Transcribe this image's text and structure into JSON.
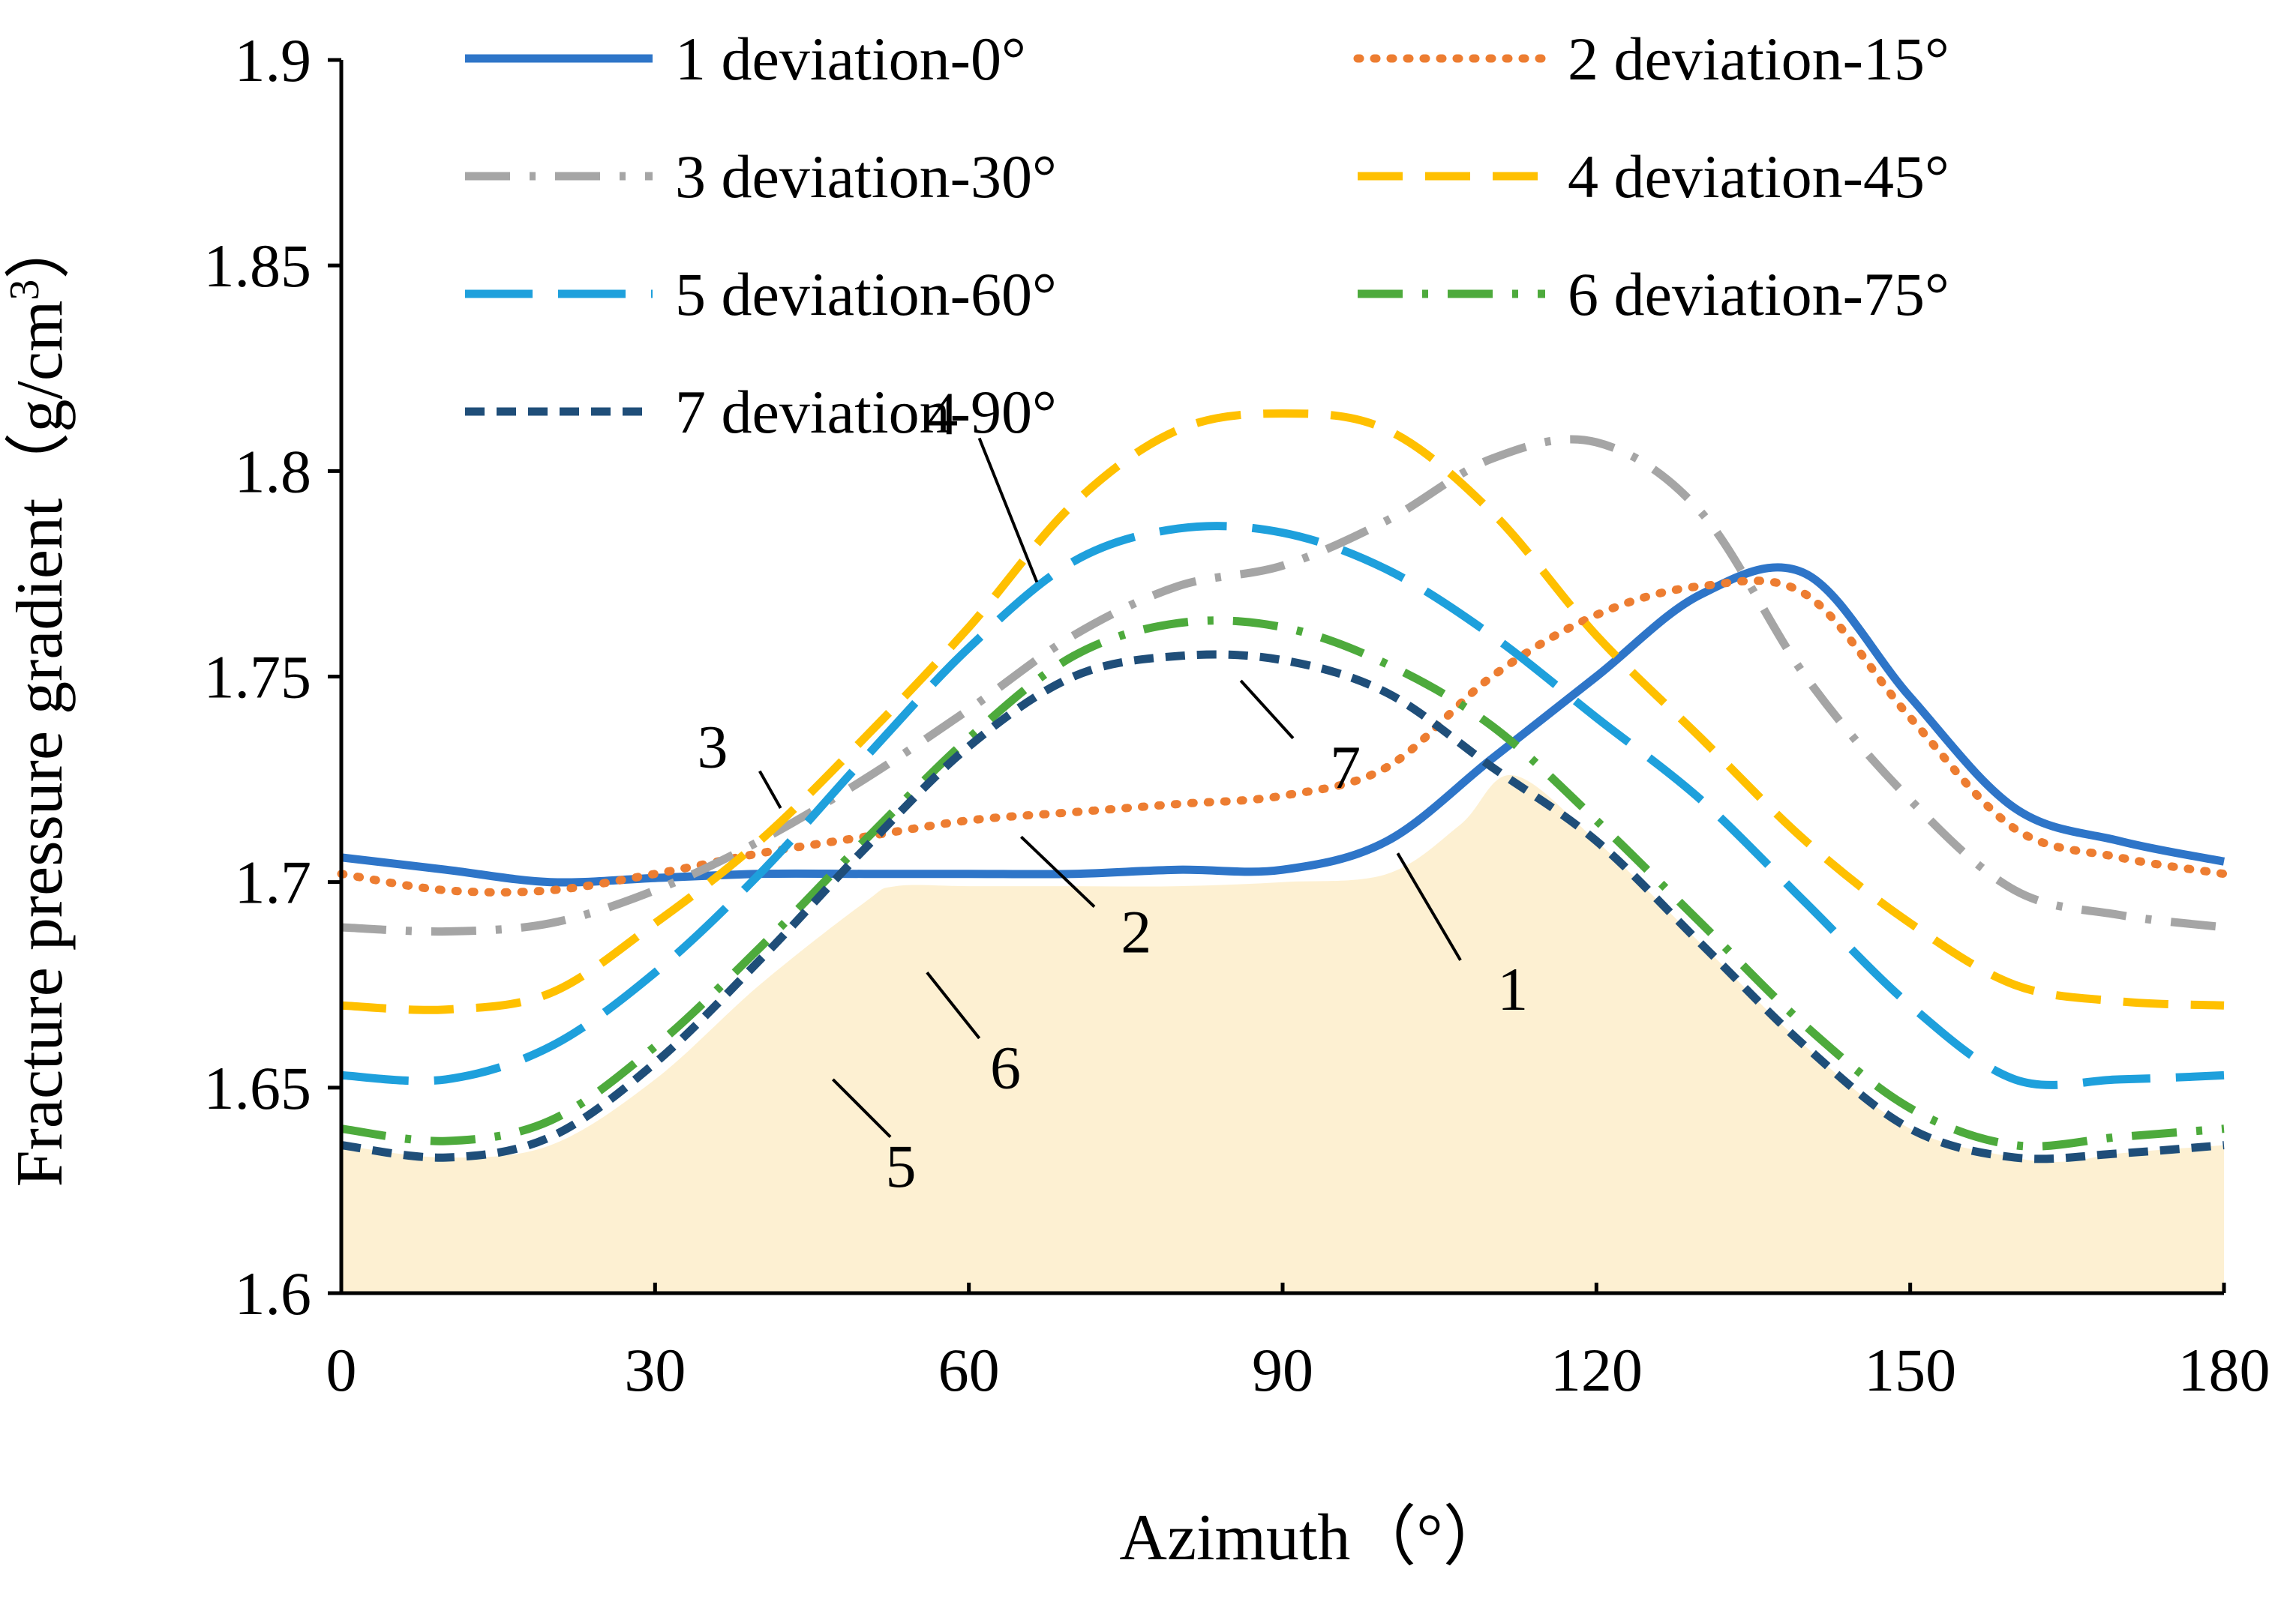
{
  "chart_data": {
    "type": "line",
    "title": "",
    "xlabel": "Azimuth（°）",
    "ylabel_main": "Fracture pressure gradient（g/cm",
    "ylabel_sup": "3",
    "ylabel_close": "）",
    "xlim": [
      0,
      180
    ],
    "ylim": [
      1.6,
      1.9
    ],
    "x_ticks": [
      0,
      30,
      60,
      90,
      120,
      150,
      180
    ],
    "y_ticks": [
      1.6,
      1.65,
      1.7,
      1.75,
      1.8,
      1.85,
      1.9
    ],
    "x_tick_labels": [
      "0",
      "30",
      "60",
      "90",
      "120",
      "150",
      "180"
    ],
    "y_tick_labels": [
      "1.6",
      "1.65",
      "1.7",
      "1.75",
      "1.8",
      "1.85",
      "1.9"
    ],
    "legend_position": "top",
    "x": [
      0,
      10,
      20,
      30,
      40,
      50,
      60,
      70,
      80,
      90,
      100,
      110,
      120,
      130,
      140,
      150,
      160,
      170,
      180
    ],
    "series": [
      {
        "id": "1",
        "name": "1 deviation-0°",
        "color": "#2e75c8",
        "style": "solid",
        "values": [
          1.706,
          1.703,
          1.7,
          1.701,
          1.702,
          1.702,
          1.702,
          1.702,
          1.703,
          1.703,
          1.71,
          1.73,
          1.75,
          1.77,
          1.775,
          1.745,
          1.718,
          1.71,
          1.705
        ]
      },
      {
        "id": "2",
        "name": "2 deviation-15°",
        "color": "#ed7d31",
        "style": "dotted",
        "values": [
          1.702,
          1.698,
          1.698,
          1.702,
          1.707,
          1.711,
          1.715,
          1.717,
          1.719,
          1.721,
          1.728,
          1.75,
          1.765,
          1.772,
          1.77,
          1.74,
          1.713,
          1.706,
          1.702
        ]
      },
      {
        "id": "3",
        "name": "3 deviation-30°",
        "color": "#a5a5a5",
        "style": "dashdot",
        "values": [
          1.689,
          1.688,
          1.69,
          1.698,
          1.71,
          1.725,
          1.742,
          1.76,
          1.772,
          1.777,
          1.788,
          1.803,
          1.807,
          1.79,
          1.75,
          1.72,
          1.698,
          1.692,
          1.689
        ]
      },
      {
        "id": "4",
        "name": "4 deviation-45°",
        "color": "#ffc000",
        "style": "dash",
        "values": [
          1.67,
          1.669,
          1.673,
          1.69,
          1.71,
          1.735,
          1.762,
          1.792,
          1.81,
          1.814,
          1.81,
          1.79,
          1.76,
          1.735,
          1.71,
          1.69,
          1.675,
          1.671,
          1.67
        ]
      },
      {
        "id": "5",
        "name": "5 deviation-60°",
        "color": "#1ea0dc",
        "style": "longdash",
        "values": [
          1.653,
          1.652,
          1.66,
          1.678,
          1.702,
          1.73,
          1.757,
          1.778,
          1.786,
          1.785,
          1.776,
          1.76,
          1.74,
          1.72,
          1.695,
          1.67,
          1.652,
          1.652,
          1.653
        ]
      },
      {
        "id": "6",
        "name": "6 deviation-75°",
        "color": "#4daa3c",
        "style": "dashdot",
        "values": [
          1.64,
          1.637,
          1.642,
          1.66,
          1.684,
          1.71,
          1.735,
          1.755,
          1.763,
          1.762,
          1.753,
          1.738,
          1.715,
          1.69,
          1.665,
          1.645,
          1.636,
          1.638,
          1.64
        ]
      },
      {
        "id": "7",
        "name": "7 deviation-90°",
        "color": "#1f4e79",
        "style": "shortdash",
        "values": [
          1.636,
          1.633,
          1.638,
          1.656,
          1.681,
          1.708,
          1.733,
          1.75,
          1.755,
          1.754,
          1.746,
          1.728,
          1.71,
          1.685,
          1.66,
          1.64,
          1.633,
          1.634,
          1.636
        ]
      }
    ],
    "safe_region": {
      "color": "#fdf0d2",
      "x": [
        0,
        10,
        20,
        30,
        40,
        50,
        53,
        60,
        70,
        80,
        90,
        100,
        107,
        112,
        120,
        130,
        140,
        150,
        160,
        165,
        170,
        180
      ],
      "y": [
        1.636,
        1.633,
        1.636,
        1.652,
        1.675,
        1.695,
        1.699,
        1.699,
        1.699,
        1.699,
        1.7,
        1.702,
        1.714,
        1.726,
        1.71,
        1.685,
        1.66,
        1.64,
        1.633,
        1.632,
        1.634,
        1.636
      ]
    },
    "callouts": [
      {
        "label": "4",
        "x0": 61.0,
        "y0": 1.808,
        "x1": 66.5,
        "y1": 1.773
      },
      {
        "label": "3",
        "x0": 40.0,
        "y0": 1.727,
        "x1": 42.0,
        "y1": 1.718
      },
      {
        "label": "2",
        "x0": 65.0,
        "y0": 1.711,
        "x1": 72.0,
        "y1": 1.694
      },
      {
        "label": "7",
        "x0": 86.0,
        "y0": 1.749,
        "x1": 91.0,
        "y1": 1.735
      },
      {
        "label": "1",
        "x0": 101.0,
        "y0": 1.707,
        "x1": 107.0,
        "y1": 1.681
      },
      {
        "label": "6",
        "x0": 56.0,
        "y0": 1.678,
        "x1": 61.0,
        "y1": 1.662
      },
      {
        "label": "5",
        "x0": 47.0,
        "y0": 1.652,
        "x1": 52.5,
        "y1": 1.638
      }
    ],
    "callout_texts": [
      {
        "label": "4",
        "x": 57.5,
        "y": 1.814
      },
      {
        "label": "3",
        "x": 35.5,
        "y": 1.733
      },
      {
        "label": "2",
        "x": 76.0,
        "y": 1.688
      },
      {
        "label": "7",
        "x": 96.0,
        "y": 1.728
      },
      {
        "label": "1",
        "x": 112.0,
        "y": 1.674
      },
      {
        "label": "6",
        "x": 63.5,
        "y": 1.655
      },
      {
        "label": "5",
        "x": 53.5,
        "y": 1.631
      }
    ]
  }
}
